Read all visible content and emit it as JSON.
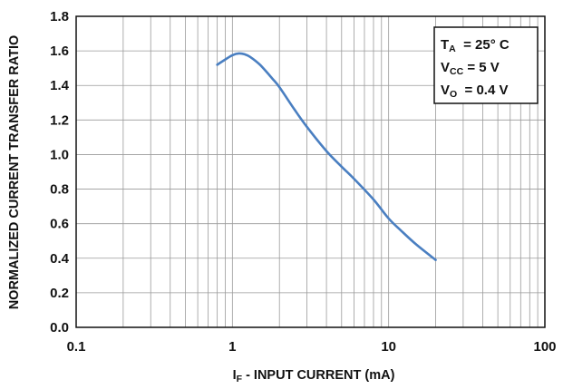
{
  "chart_data": {
    "type": "line",
    "title": "",
    "xlabel_main": "I",
    "xlabel_sub": "F",
    "xlabel_rest": " - INPUT CURRENT (mA)",
    "ylabel": "NORMALIZED CURRENT TRANSFER RATIO",
    "x_scale": "log",
    "xlim": [
      0.1,
      100
    ],
    "ylim": [
      0.0,
      1.8
    ],
    "x_ticks": [
      "0.1",
      "1",
      "10",
      "100"
    ],
    "y_ticks": [
      "0.0",
      "0.2",
      "0.4",
      "0.6",
      "0.8",
      "1.0",
      "1.2",
      "1.4",
      "1.6",
      "1.8"
    ],
    "grid": true,
    "line_color": "#4a7fc1",
    "series": [
      {
        "x": [
          0.8,
          0.9,
          1.0,
          1.1,
          1.2,
          1.3,
          1.5,
          1.8,
          2.0,
          2.5,
          3.0,
          4.0,
          5.0,
          6.0,
          8.0,
          10.0,
          12.0,
          15.0,
          20.0
        ],
        "y": [
          1.52,
          1.55,
          1.575,
          1.585,
          1.58,
          1.565,
          1.52,
          1.44,
          1.39,
          1.26,
          1.16,
          1.02,
          0.93,
          0.86,
          0.74,
          0.63,
          0.56,
          0.48,
          0.39
        ]
      }
    ],
    "legend": {
      "lines": [
        {
          "main": "T",
          "sub": "A",
          "rest": "  = 25° C"
        },
        {
          "main": "V",
          "sub": "CC",
          "rest": " = 5 V"
        },
        {
          "main": "V",
          "sub": "O",
          "rest": "  = 0.4 V"
        }
      ],
      "placement": "top-right"
    }
  }
}
